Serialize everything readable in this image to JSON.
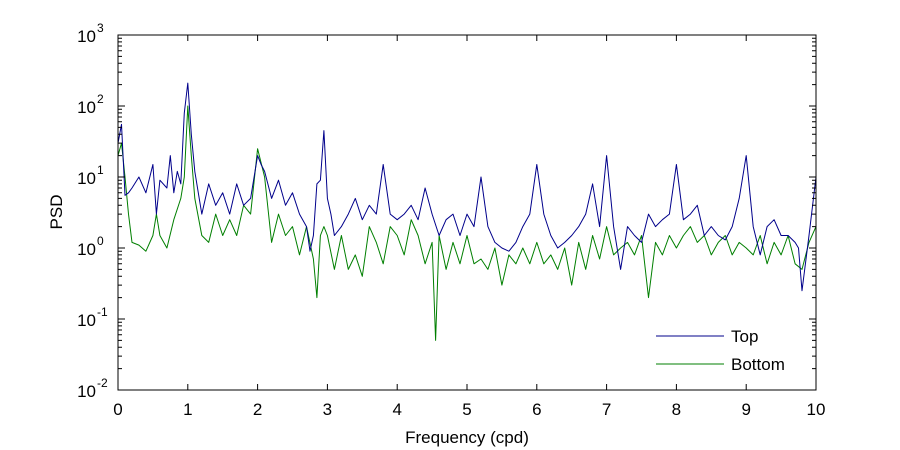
{
  "chart_data": {
    "type": "line",
    "title": "",
    "xlabel": "Frequency (cpd)",
    "ylabel": "PSD",
    "xlim": [
      0,
      10
    ],
    "ylim": [
      0.01,
      1000
    ],
    "yscale": "log",
    "grid": false,
    "legend_position": "bottom-right",
    "x_ticks": [
      0,
      1,
      2,
      3,
      4,
      5,
      6,
      7,
      8,
      9,
      10
    ],
    "x_tick_labels": [
      "0",
      "1",
      "2",
      "3",
      "4",
      "5",
      "6",
      "7",
      "8",
      "9",
      "10"
    ],
    "y_ticks": [
      0.01,
      0.1,
      1,
      10,
      100,
      1000
    ],
    "y_tick_labels": [
      {
        "base": "10",
        "exp": "-2"
      },
      {
        "base": "10",
        "exp": "-1"
      },
      {
        "base": "10",
        "exp": "0"
      },
      {
        "base": "10",
        "exp": "1"
      },
      {
        "base": "10",
        "exp": "2"
      },
      {
        "base": "10",
        "exp": "3"
      }
    ],
    "series": [
      {
        "name": "Top",
        "color": "#00008B",
        "x": [
          0,
          0.05,
          0.1,
          0.15,
          0.2,
          0.3,
          0.4,
          0.5,
          0.55,
          0.6,
          0.7,
          0.75,
          0.8,
          0.85,
          0.9,
          0.95,
          1.0,
          1.05,
          1.1,
          1.15,
          1.2,
          1.3,
          1.4,
          1.5,
          1.6,
          1.7,
          1.8,
          1.9,
          2.0,
          2.05,
          2.1,
          2.2,
          2.3,
          2.4,
          2.5,
          2.6,
          2.7,
          2.75,
          2.8,
          2.85,
          2.9,
          2.95,
          3.0,
          3.05,
          3.1,
          3.2,
          3.3,
          3.4,
          3.5,
          3.6,
          3.7,
          3.8,
          3.9,
          4.0,
          4.1,
          4.2,
          4.3,
          4.4,
          4.5,
          4.6,
          4.7,
          4.8,
          4.9,
          5.0,
          5.1,
          5.2,
          5.3,
          5.4,
          5.5,
          5.6,
          5.7,
          5.8,
          5.9,
          6.0,
          6.1,
          6.2,
          6.3,
          6.4,
          6.5,
          6.6,
          6.7,
          6.8,
          6.9,
          7.0,
          7.1,
          7.2,
          7.3,
          7.4,
          7.5,
          7.6,
          7.7,
          7.8,
          7.9,
          8.0,
          8.1,
          8.2,
          8.3,
          8.4,
          8.5,
          8.6,
          8.7,
          8.8,
          8.9,
          9.0,
          9.1,
          9.2,
          9.3,
          9.4,
          9.5,
          9.6,
          9.7,
          9.75,
          9.8,
          9.9,
          10.0
        ],
        "y": [
          30,
          55,
          5.5,
          6,
          7,
          10,
          6,
          15,
          3,
          9,
          7,
          20,
          6,
          12,
          8,
          80,
          210,
          40,
          12,
          6,
          3,
          8,
          4,
          6,
          3,
          8,
          4,
          5,
          20,
          15,
          12,
          5,
          9,
          4,
          6,
          3,
          2,
          0.9,
          1.5,
          8,
          9,
          45,
          5,
          3,
          1.5,
          2,
          3,
          5,
          2.5,
          4,
          3,
          15,
          3,
          2.5,
          3,
          4,
          2.5,
          7,
          3,
          1.5,
          2.5,
          3,
          1.5,
          3,
          2,
          10,
          2,
          1.2,
          1.0,
          0.9,
          1.2,
          2,
          3,
          15,
          3,
          1.5,
          1.0,
          1.2,
          1.5,
          2,
          3,
          8,
          2,
          20,
          2,
          0.5,
          2,
          1.5,
          1.2,
          3,
          2,
          2.5,
          3,
          15,
          2.5,
          3,
          4,
          1.5,
          2,
          1.5,
          1.3,
          2,
          5,
          20,
          2,
          0.8,
          2,
          2.5,
          1.5,
          1.5,
          1.2,
          1.0,
          0.25,
          1.5,
          10
        ]
      },
      {
        "name": "Bottom",
        "color": "#007F00",
        "x": [
          0,
          0.05,
          0.1,
          0.15,
          0.2,
          0.3,
          0.4,
          0.5,
          0.55,
          0.6,
          0.7,
          0.8,
          0.9,
          0.95,
          1.0,
          1.05,
          1.1,
          1.2,
          1.3,
          1.4,
          1.5,
          1.6,
          1.7,
          1.8,
          1.9,
          2.0,
          2.1,
          2.2,
          2.3,
          2.4,
          2.5,
          2.6,
          2.7,
          2.8,
          2.85,
          2.9,
          2.95,
          3.0,
          3.1,
          3.2,
          3.3,
          3.4,
          3.5,
          3.6,
          3.7,
          3.8,
          3.9,
          4.0,
          4.1,
          4.2,
          4.3,
          4.4,
          4.5,
          4.55,
          4.6,
          4.7,
          4.8,
          4.9,
          5.0,
          5.1,
          5.2,
          5.3,
          5.4,
          5.5,
          5.6,
          5.7,
          5.8,
          5.9,
          6.0,
          6.1,
          6.2,
          6.3,
          6.4,
          6.5,
          6.6,
          6.7,
          6.8,
          6.9,
          7.0,
          7.1,
          7.2,
          7.3,
          7.4,
          7.5,
          7.6,
          7.7,
          7.8,
          7.9,
          8.0,
          8.1,
          8.2,
          8.3,
          8.4,
          8.5,
          8.6,
          8.7,
          8.8,
          8.9,
          9.0,
          9.1,
          9.2,
          9.3,
          9.4,
          9.5,
          9.6,
          9.7,
          9.8,
          9.9,
          10.0
        ],
        "y": [
          20,
          30,
          10,
          3,
          1.2,
          1.1,
          0.9,
          1.5,
          3,
          1.5,
          1.0,
          2.5,
          5,
          10,
          100,
          20,
          5,
          1.5,
          1.2,
          3,
          1.5,
          2.5,
          1.5,
          4,
          3,
          25,
          10,
          1.2,
          3,
          1.5,
          2,
          0.8,
          2,
          0.7,
          0.2,
          1.5,
          2,
          1.5,
          0.5,
          1.5,
          0.5,
          0.8,
          0.4,
          2,
          1.2,
          0.6,
          2,
          1.5,
          0.8,
          2.5,
          1.5,
          0.6,
          1.2,
          0.05,
          1.5,
          0.5,
          1.2,
          0.6,
          1.5,
          0.6,
          0.7,
          0.5,
          1.0,
          0.3,
          0.8,
          0.6,
          1.0,
          0.6,
          1.2,
          0.6,
          0.8,
          0.5,
          1.0,
          0.3,
          1.2,
          0.5,
          1.5,
          0.7,
          2,
          0.8,
          1.0,
          1.2,
          0.8,
          1.5,
          0.2,
          1.2,
          0.8,
          1.5,
          1.0,
          1.5,
          2,
          1.2,
          1.5,
          0.8,
          1.2,
          1.5,
          0.8,
          1.2,
          1.0,
          0.8,
          1.5,
          0.6,
          1.2,
          0.8,
          1.5,
          0.6,
          0.5,
          1.2,
          2
        ]
      }
    ]
  }
}
